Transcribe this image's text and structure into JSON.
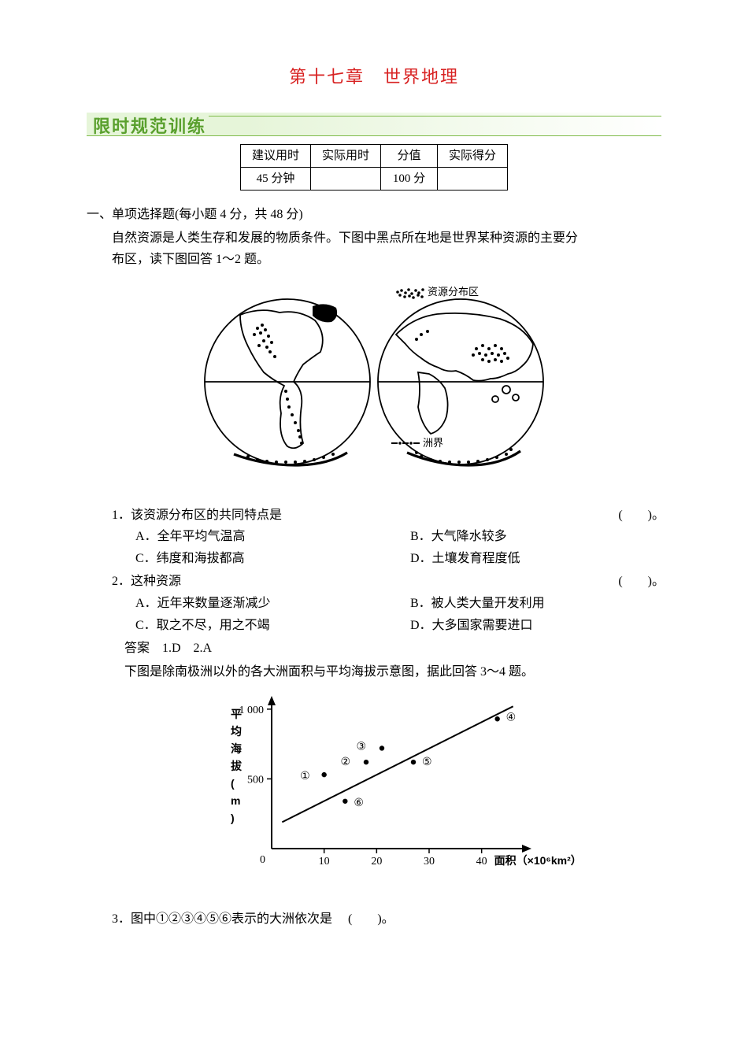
{
  "chapter": {
    "title": "第十七章　世界地理"
  },
  "banner": {
    "title": "限时规范训练"
  },
  "time_table": {
    "headers": [
      "建议用时",
      "实际用时",
      "分值",
      "实际得分"
    ],
    "row": [
      "45 分钟",
      "",
      "100 分",
      ""
    ]
  },
  "section1": {
    "heading": "一、单项选择题(每小题 4 分，共 48 分)",
    "context_line1": "自然资源是人类生存和发展的物质条件。下图中黑点所在地是世界某种资源的主要分",
    "context_line2": "布区，读下图回答 1～2 题。"
  },
  "worldmap": {
    "legend_resource": "资源分布区",
    "legend_boundary": "洲界",
    "colors": {
      "stroke": "#000000",
      "fill": "#000000",
      "bg": "#ffffff"
    }
  },
  "q1": {
    "text": "1．该资源分布区的共同特点是",
    "paren": "(　　)。",
    "A": "A．全年平均气温高",
    "B": "B．大气降水较多",
    "C": "C．纬度和海拔都高",
    "D": "D．土壤发育程度低"
  },
  "q2": {
    "text": "2．这种资源",
    "paren": "(　　)。",
    "A": "A．近年来数量逐渐减少",
    "B": "B．被人类大量开发利用",
    "C": "C．取之不尽，用之不竭",
    "D": "D．大多国家需要进口"
  },
  "answer12": "答案　1.D　2.A",
  "context2": "下图是除南极洲以外的各大洲面积与平均海拔示意图，据此回答 3～4 题。",
  "scatter": {
    "type": "scatter",
    "title": "",
    "xlabel": "面积（×10⁶km²）",
    "ylabel_lines": [
      "平",
      "均",
      "海",
      "拔",
      "(",
      "m",
      ")"
    ],
    "xlim": [
      0,
      48
    ],
    "ylim": [
      0,
      1050
    ],
    "xticks": [
      0,
      10,
      20,
      30,
      40
    ],
    "yticks": [
      500,
      1000
    ],
    "ytick_labels": [
      "500",
      "1 000"
    ],
    "origin_label": "0",
    "points": [
      {
        "id": "①",
        "x": 10,
        "y": 530,
        "dx": -18,
        "dy": 6
      },
      {
        "id": "②",
        "x": 18,
        "y": 620,
        "dx": -20,
        "dy": 4
      },
      {
        "id": "③",
        "x": 21,
        "y": 720,
        "dx": -20,
        "dy": 2
      },
      {
        "id": "④",
        "x": 43,
        "y": 930,
        "dx": 11,
        "dy": 2
      },
      {
        "id": "⑤",
        "x": 27,
        "y": 620,
        "dx": 11,
        "dy": 4
      },
      {
        "id": "⑥",
        "x": 14,
        "y": 340,
        "dx": 11,
        "dy": 6
      }
    ],
    "fitline": {
      "x1": 2,
      "y1": 190,
      "x2": 46,
      "y2": 1020
    },
    "colors": {
      "axis": "#000000",
      "point": "#000000",
      "line": "#000000",
      "bg": "#ffffff"
    },
    "point_radius": 3.2,
    "axis_width": 2
  },
  "q3": {
    "text": "3．图中①②③④⑤⑥表示的大洲依次是",
    "paren": "(　　)。"
  }
}
